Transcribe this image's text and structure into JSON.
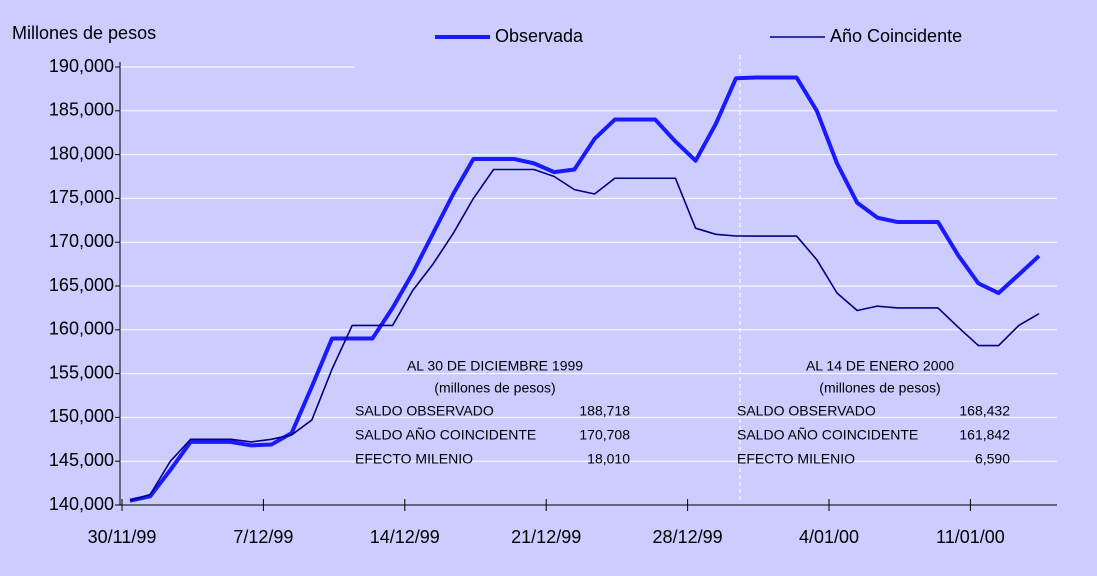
{
  "chart_data": {
    "type": "line",
    "y_label": "Millones de pesos",
    "categories": [
      "30/11/99",
      null,
      null,
      null,
      null,
      null,
      null,
      "7/12/99",
      null,
      null,
      null,
      null,
      null,
      null,
      "14/12/99",
      null,
      null,
      null,
      null,
      null,
      null,
      "21/12/99",
      null,
      null,
      null,
      null,
      null,
      null,
      "28/12/99",
      null,
      null,
      null,
      null,
      null,
      null,
      "4/01/00",
      null,
      null,
      null,
      null,
      null,
      null,
      "11/01/00",
      null,
      null,
      null
    ],
    "series": [
      {
        "name": "Observada",
        "color": "#1a1aff",
        "values": [
          140500,
          141000,
          144000,
          147200,
          147200,
          147200,
          146800,
          146900,
          148200,
          153500,
          159000,
          159000,
          159000,
          162500,
          166500,
          171000,
          175500,
          179500,
          179500,
          179500,
          179000,
          178000,
          178300,
          181800,
          184000,
          184000,
          184000,
          181500,
          179300,
          183500,
          188718,
          188800,
          188800,
          188800,
          185000,
          179000,
          174500,
          172800,
          172300,
          172300,
          172300,
          168500,
          165300,
          164200,
          166300,
          168432
        ]
      },
      {
        "name": "Año Coincidente",
        "color": "#000080",
        "values": [
          140500,
          141200,
          145000,
          147500,
          147500,
          147500,
          147200,
          147500,
          148000,
          149700,
          155500,
          160500,
          160500,
          160500,
          164500,
          167500,
          171000,
          175000,
          178300,
          178300,
          178300,
          177500,
          176000,
          175500,
          177300,
          177300,
          177300,
          177300,
          171600,
          170900,
          170708,
          170700,
          170700,
          170700,
          168000,
          164200,
          162200,
          162700,
          162500,
          162500,
          162500,
          160300,
          158200,
          158200,
          160500,
          161842
        ]
      }
    ],
    "ylim": [
      140000,
      190000
    ],
    "yticks": [
      {
        "value": 140000,
        "label": "140,000"
      },
      {
        "value": 145000,
        "label": "145,000"
      },
      {
        "value": 150000,
        "label": "150,000"
      },
      {
        "value": 155000,
        "label": "155,000"
      },
      {
        "value": 160000,
        "label": "160,000"
      },
      {
        "value": 165000,
        "label": "165,000"
      },
      {
        "value": 170000,
        "label": "170,000"
      },
      {
        "value": 175000,
        "label": "175,000"
      },
      {
        "value": 180000,
        "label": "180,000"
      },
      {
        "value": 185000,
        "label": "185,000"
      },
      {
        "value": 190000,
        "label": "190,000"
      }
    ],
    "grid": true,
    "legend": "top",
    "annotations": [
      {
        "title": "AL 30  DE DICIEMBRE 1999",
        "subtitle": "(millones de pesos)",
        "rows": [
          [
            "SALDO OBSERVADO",
            "188,718"
          ],
          [
            "SALDO AÑO COINCIDENTE",
            "170,708"
          ],
          [
            "EFECTO MILENIO",
            "18,010"
          ]
        ]
      },
      {
        "title": "AL 14  DE ENERO 2000",
        "subtitle": "(millones de pesos)",
        "rows": [
          [
            "SALDO OBSERVADO",
            "168,432"
          ],
          [
            "SALDO AÑO COINCIDENTE",
            "161,842"
          ],
          [
            "EFECTO MILENIO",
            "6,590"
          ]
        ]
      }
    ]
  }
}
